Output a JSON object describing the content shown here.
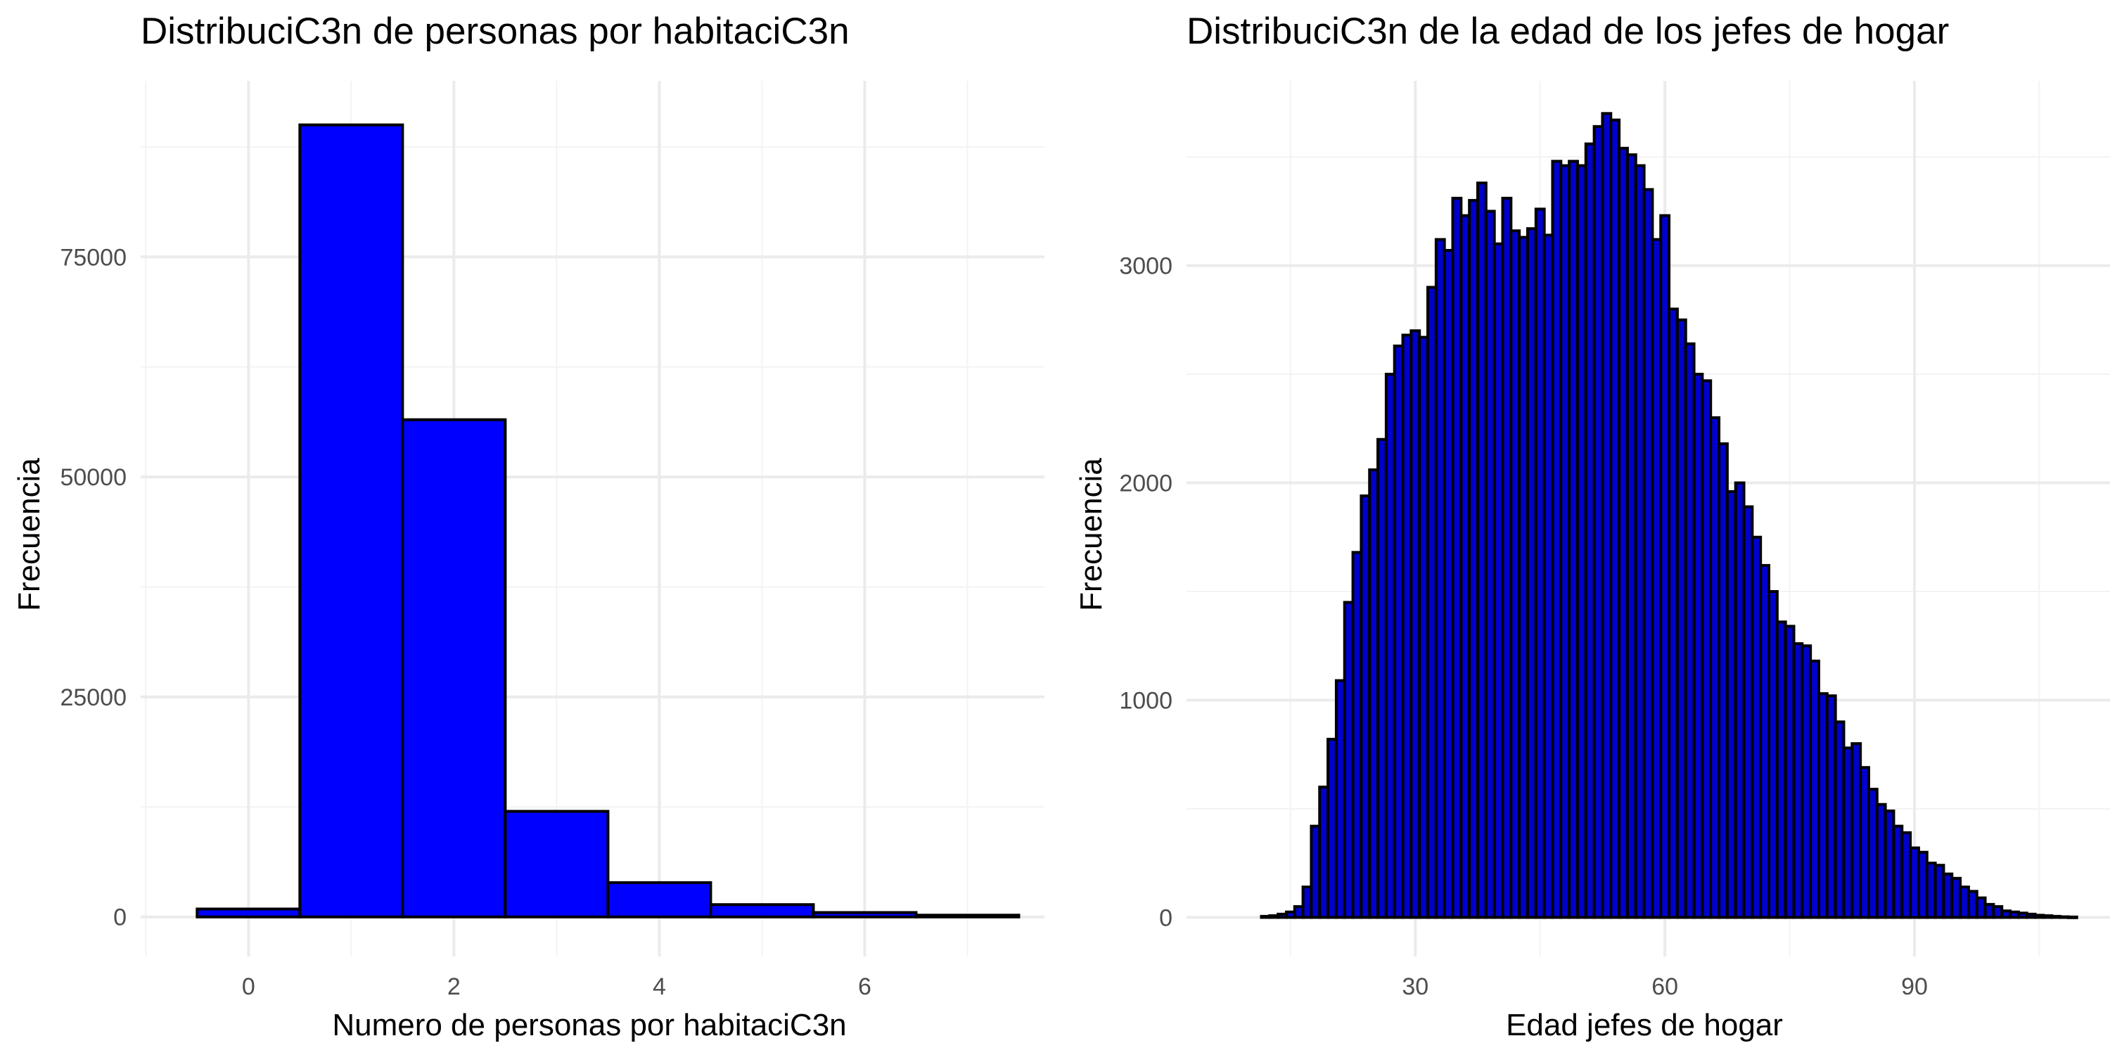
{
  "colors": {
    "bar_fill_1": "#0000ff",
    "bar_fill_2": "#0000cc",
    "bar_stroke": "#000000",
    "grid": "#ebebeb"
  },
  "chart_data": [
    {
      "type": "bar",
      "title": "DistribuciC3n de personas por habitaciC3n",
      "xlabel": "Numero de personas por habitaciC3n",
      "ylabel": "Frecuencia",
      "categories": [
        0,
        1,
        2,
        3,
        4,
        5,
        6,
        7
      ],
      "values": [
        900,
        90000,
        56500,
        12000,
        3900,
        1400,
        500,
        200
      ],
      "xlim": [
        -1.05,
        7.75
      ],
      "ylim": [
        -4500,
        95000
      ],
      "xticks": [
        0,
        2,
        4,
        6
      ],
      "yticks": [
        0,
        25000,
        50000,
        75000
      ],
      "ytick_labels": [
        "0",
        "25000",
        "50000",
        "75000"
      ],
      "grid": true
    },
    {
      "type": "bar",
      "title": "DistribuciC3n de la edad de los jefes de hogar",
      "xlabel": "Edad jefes de hogar",
      "ylabel": "Frecuencia",
      "x": [
        12,
        13,
        14,
        15,
        16,
        17,
        18,
        19,
        20,
        21,
        22,
        23,
        24,
        25,
        26,
        27,
        28,
        29,
        30,
        31,
        32,
        33,
        34,
        35,
        36,
        37,
        38,
        39,
        40,
        41,
        42,
        43,
        44,
        45,
        46,
        47,
        48,
        49,
        50,
        51,
        52,
        53,
        54,
        55,
        56,
        57,
        58,
        59,
        60,
        61,
        62,
        63,
        64,
        65,
        66,
        67,
        68,
        69,
        70,
        71,
        72,
        73,
        74,
        75,
        76,
        77,
        78,
        79,
        80,
        81,
        82,
        83,
        84,
        85,
        86,
        87,
        88,
        89,
        90,
        91,
        92,
        93,
        94,
        95,
        96,
        97,
        98,
        99,
        100,
        101,
        102,
        103,
        104,
        105,
        106,
        107,
        108,
        109
      ],
      "values": [
        5,
        8,
        15,
        25,
        50,
        140,
        420,
        600,
        820,
        1090,
        1450,
        1680,
        1940,
        2060,
        2200,
        2500,
        2630,
        2680,
        2700,
        2670,
        2900,
        3120,
        3070,
        3310,
        3230,
        3300,
        3380,
        3250,
        3100,
        3310,
        3160,
        3130,
        3170,
        3260,
        3140,
        3480,
        3460,
        3480,
        3460,
        3560,
        3640,
        3700,
        3670,
        3540,
        3510,
        3460,
        3350,
        3120,
        3230,
        2800,
        2750,
        2640,
        2500,
        2470,
        2300,
        2180,
        1960,
        2000,
        1890,
        1750,
        1620,
        1500,
        1360,
        1340,
        1260,
        1250,
        1180,
        1030,
        1020,
        900,
        780,
        800,
        690,
        590,
        520,
        490,
        420,
        390,
        320,
        300,
        250,
        240,
        200,
        180,
        140,
        120,
        90,
        60,
        50,
        30,
        25,
        20,
        15,
        10,
        8,
        5,
        3,
        2
      ],
      "xlim": [
        2.5,
        113.5
      ],
      "ylim": [
        -180,
        3850
      ],
      "xticks": [
        30,
        60,
        90
      ],
      "yticks": [
        0,
        1000,
        2000,
        3000
      ],
      "ytick_labels": [
        "0",
        "1000",
        "2000",
        "3000"
      ],
      "grid": true
    }
  ]
}
